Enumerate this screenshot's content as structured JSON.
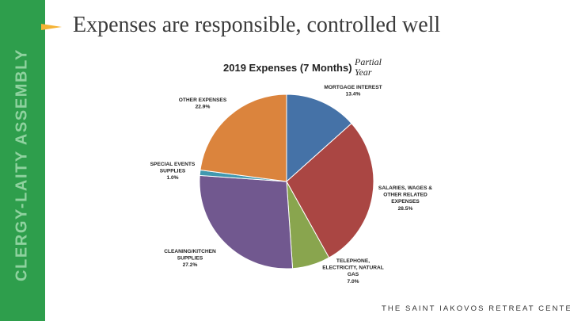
{
  "sidebar": {
    "text": "CLERGY-LAITY ASSEMBLY"
  },
  "slide": {
    "title": "Expenses are responsible, controlled well"
  },
  "footer": {
    "text": "THE SAINT IAKOVOS RETREAT CENTER"
  },
  "chart_data": {
    "type": "pie",
    "title": "2019 Expenses (7 Months)",
    "note": [
      "Partial",
      "Year"
    ],
    "slices": [
      {
        "label": [
          "MORTGAGE INTEREST"
        ],
        "percent": "13.4%",
        "value": 13.4,
        "color": "#4572a7"
      },
      {
        "label": [
          "SALARIES, WAGES &",
          "OTHER RELATED",
          "EXPENSES"
        ],
        "percent": "28.5%",
        "value": 28.5,
        "color": "#aa4643"
      },
      {
        "label": [
          "TELEPHONE,",
          "ELECTRICITY, NATURAL",
          "GAS"
        ],
        "percent": "7.0%",
        "value": 7.0,
        "color": "#89a54e"
      },
      {
        "label": [
          "CLEANING/KITCHEN",
          "SUPPLIES"
        ],
        "percent": "27.2%",
        "value": 27.2,
        "color": "#71588f"
      },
      {
        "label": [
          "SPECIAL EVENTS",
          "SUPPLIES"
        ],
        "percent": "1.0%",
        "value": 1.0,
        "color": "#4198af"
      },
      {
        "label": [
          "OTHER EXPENSES"
        ],
        "percent": "22.9%",
        "value": 22.9,
        "color": "#db843d"
      }
    ]
  }
}
